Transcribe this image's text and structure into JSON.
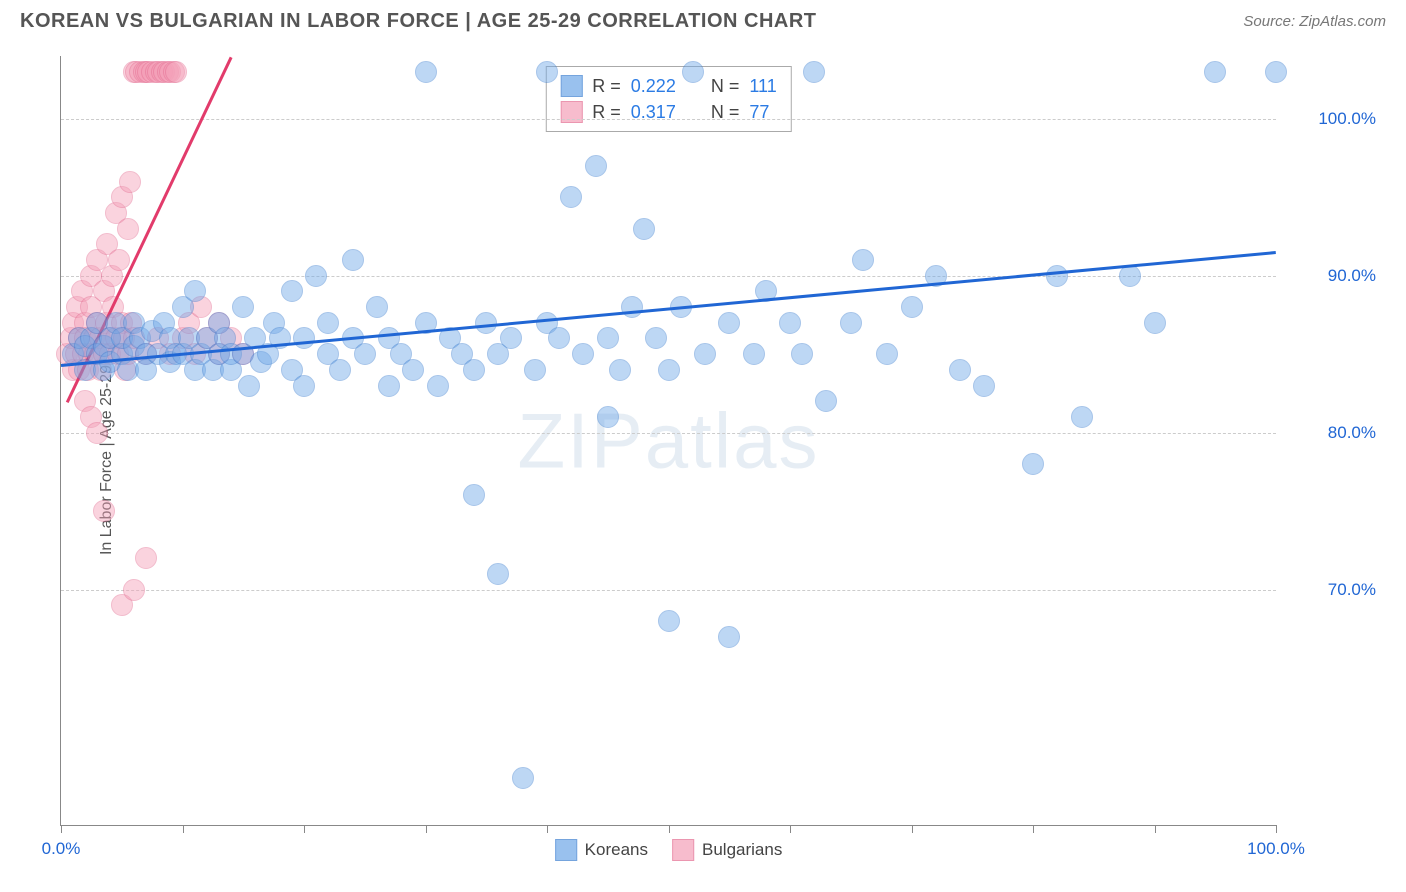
{
  "header": {
    "title": "KOREAN VS BULGARIAN IN LABOR FORCE | AGE 25-29 CORRELATION CHART",
    "source_prefix": "Source: ",
    "source": "ZipAtlas.com"
  },
  "chart": {
    "type": "scatter",
    "ylabel": "In Labor Force | Age 25-29",
    "watermark": "ZIPatlas",
    "background_color": "#ffffff",
    "grid_color": "#cccccc",
    "axis_color": "#888888",
    "xlim": [
      0,
      100
    ],
    "ylim": [
      55,
      104
    ],
    "xtick_step": 10,
    "yticks": [
      70,
      80,
      90,
      100
    ],
    "ytick_labels": [
      "70.0%",
      "80.0%",
      "90.0%",
      "100.0%"
    ],
    "x_end_labels": {
      "min": "0.0%",
      "max": "100.0%"
    },
    "marker_radius": 11,
    "marker_opacity": 0.45,
    "series": [
      {
        "name": "Koreans",
        "color": "#6fa8e8",
        "border": "#3b7ed0",
        "stats": {
          "r": "0.222",
          "n": "111"
        },
        "trend": {
          "x1": 0,
          "y1": 84.4,
          "x2": 100,
          "y2": 91.6,
          "color": "#2066d4"
        },
        "points": [
          [
            1,
            85
          ],
          [
            1.5,
            86
          ],
          [
            2,
            84
          ],
          [
            2,
            85.5
          ],
          [
            2.5,
            86
          ],
          [
            3,
            85
          ],
          [
            3,
            87
          ],
          [
            3.5,
            84
          ],
          [
            3.5,
            85.5
          ],
          [
            4,
            86
          ],
          [
            4,
            84.5
          ],
          [
            4.5,
            87
          ],
          [
            5,
            85
          ],
          [
            5,
            86
          ],
          [
            5.5,
            84
          ],
          [
            6,
            85.5
          ],
          [
            6,
            87
          ],
          [
            6.5,
            86
          ],
          [
            7,
            85
          ],
          [
            7,
            84
          ],
          [
            7.5,
            86.5
          ],
          [
            8,
            85
          ],
          [
            8.5,
            87
          ],
          [
            9,
            86
          ],
          [
            9,
            84.5
          ],
          [
            9.5,
            85
          ],
          [
            10,
            88
          ],
          [
            10,
            85
          ],
          [
            10.5,
            86
          ],
          [
            11,
            84
          ],
          [
            11,
            89
          ],
          [
            11.5,
            85
          ],
          [
            12,
            86
          ],
          [
            12.5,
            84
          ],
          [
            13,
            85
          ],
          [
            13,
            87
          ],
          [
            13.5,
            86
          ],
          [
            14,
            84
          ],
          [
            14,
            85
          ],
          [
            15,
            88
          ],
          [
            15,
            85
          ],
          [
            15.5,
            83
          ],
          [
            16,
            86
          ],
          [
            16.5,
            84.5
          ],
          [
            17,
            85
          ],
          [
            17.5,
            87
          ],
          [
            18,
            86
          ],
          [
            19,
            84
          ],
          [
            19,
            89
          ],
          [
            20,
            86
          ],
          [
            20,
            83
          ],
          [
            21,
            90
          ],
          [
            22,
            85
          ],
          [
            22,
            87
          ],
          [
            23,
            84
          ],
          [
            24,
            91
          ],
          [
            24,
            86
          ],
          [
            25,
            85
          ],
          [
            26,
            88
          ],
          [
            27,
            83
          ],
          [
            27,
            86
          ],
          [
            28,
            85
          ],
          [
            29,
            84
          ],
          [
            30,
            87
          ],
          [
            30,
            103
          ],
          [
            31,
            83
          ],
          [
            32,
            86
          ],
          [
            33,
            85
          ],
          [
            34,
            84
          ],
          [
            34,
            76
          ],
          [
            35,
            87
          ],
          [
            36,
            85
          ],
          [
            36,
            71
          ],
          [
            37,
            86
          ],
          [
            38,
            58
          ],
          [
            39,
            84
          ],
          [
            40,
            103
          ],
          [
            40,
            87
          ],
          [
            41,
            86
          ],
          [
            42,
            95
          ],
          [
            43,
            85
          ],
          [
            44,
            97
          ],
          [
            45,
            86
          ],
          [
            45,
            81
          ],
          [
            46,
            84
          ],
          [
            47,
            88
          ],
          [
            48,
            93
          ],
          [
            49,
            86
          ],
          [
            50,
            84
          ],
          [
            50,
            68
          ],
          [
            51,
            88
          ],
          [
            52,
            103
          ],
          [
            53,
            85
          ],
          [
            55,
            87
          ],
          [
            55,
            67
          ],
          [
            57,
            85
          ],
          [
            58,
            89
          ],
          [
            60,
            87
          ],
          [
            61,
            85
          ],
          [
            62,
            103
          ],
          [
            63,
            82
          ],
          [
            65,
            87
          ],
          [
            66,
            91
          ],
          [
            68,
            85
          ],
          [
            70,
            88
          ],
          [
            72,
            90
          ],
          [
            74,
            84
          ],
          [
            76,
            83
          ],
          [
            80,
            78
          ],
          [
            82,
            90
          ],
          [
            84,
            81
          ],
          [
            88,
            90
          ],
          [
            90,
            87
          ],
          [
            95,
            103
          ],
          [
            100,
            103
          ]
        ]
      },
      {
        "name": "Bulgarians",
        "color": "#f4a0b8",
        "border": "#e36b90",
        "stats": {
          "r": "0.317",
          "n": "77"
        },
        "trend": {
          "x1": 0.5,
          "y1": 82,
          "x2": 14,
          "y2": 104,
          "color": "#e23b6b"
        },
        "points": [
          [
            0.5,
            85
          ],
          [
            0.8,
            86
          ],
          [
            1,
            84
          ],
          [
            1,
            87
          ],
          [
            1.2,
            85
          ],
          [
            1.3,
            88
          ],
          [
            1.5,
            86
          ],
          [
            1.5,
            84
          ],
          [
            1.7,
            89
          ],
          [
            1.8,
            85
          ],
          [
            2,
            87
          ],
          [
            2,
            86
          ],
          [
            2.2,
            84
          ],
          [
            2.3,
            85
          ],
          [
            2.5,
            90
          ],
          [
            2.5,
            88
          ],
          [
            2.7,
            86
          ],
          [
            2.8,
            85
          ],
          [
            3,
            91
          ],
          [
            3,
            87
          ],
          [
            3.2,
            86
          ],
          [
            3.3,
            84
          ],
          [
            3.5,
            89
          ],
          [
            3.5,
            85
          ],
          [
            3.7,
            87
          ],
          [
            3.8,
            92
          ],
          [
            4,
            86
          ],
          [
            4,
            85
          ],
          [
            4.2,
            90
          ],
          [
            4.3,
            88
          ],
          [
            4.5,
            94
          ],
          [
            4.5,
            86
          ],
          [
            4.7,
            85
          ],
          [
            4.8,
            91
          ],
          [
            5,
            87
          ],
          [
            5,
            95
          ],
          [
            5.2,
            86
          ],
          [
            5.3,
            84
          ],
          [
            5.5,
            93
          ],
          [
            5.5,
            85
          ],
          [
            5.7,
            96
          ],
          [
            5.8,
            87
          ],
          [
            6,
            86
          ],
          [
            6,
            103
          ],
          [
            6.2,
            103
          ],
          [
            6.5,
            103
          ],
          [
            6.8,
            103
          ],
          [
            7,
            103
          ],
          [
            7,
            85
          ],
          [
            7.2,
            103
          ],
          [
            7.5,
            103
          ],
          [
            7.8,
            103
          ],
          [
            8,
            103
          ],
          [
            8,
            86
          ],
          [
            8.3,
            103
          ],
          [
            8.5,
            103
          ],
          [
            8.8,
            103
          ],
          [
            9,
            103
          ],
          [
            9,
            85
          ],
          [
            9.3,
            103
          ],
          [
            9.5,
            103
          ],
          [
            2,
            82
          ],
          [
            2.5,
            81
          ],
          [
            3,
            80
          ],
          [
            3.5,
            75
          ],
          [
            5,
            69
          ],
          [
            6,
            70
          ],
          [
            7,
            72
          ],
          [
            10,
            86
          ],
          [
            10.5,
            87
          ],
          [
            11,
            85
          ],
          [
            11.5,
            88
          ],
          [
            12,
            86
          ],
          [
            13,
            87
          ],
          [
            13,
            85
          ],
          [
            14,
            86
          ],
          [
            15,
            85
          ]
        ]
      }
    ],
    "legend_labels": {
      "r": "R =",
      "n": "N ="
    }
  }
}
